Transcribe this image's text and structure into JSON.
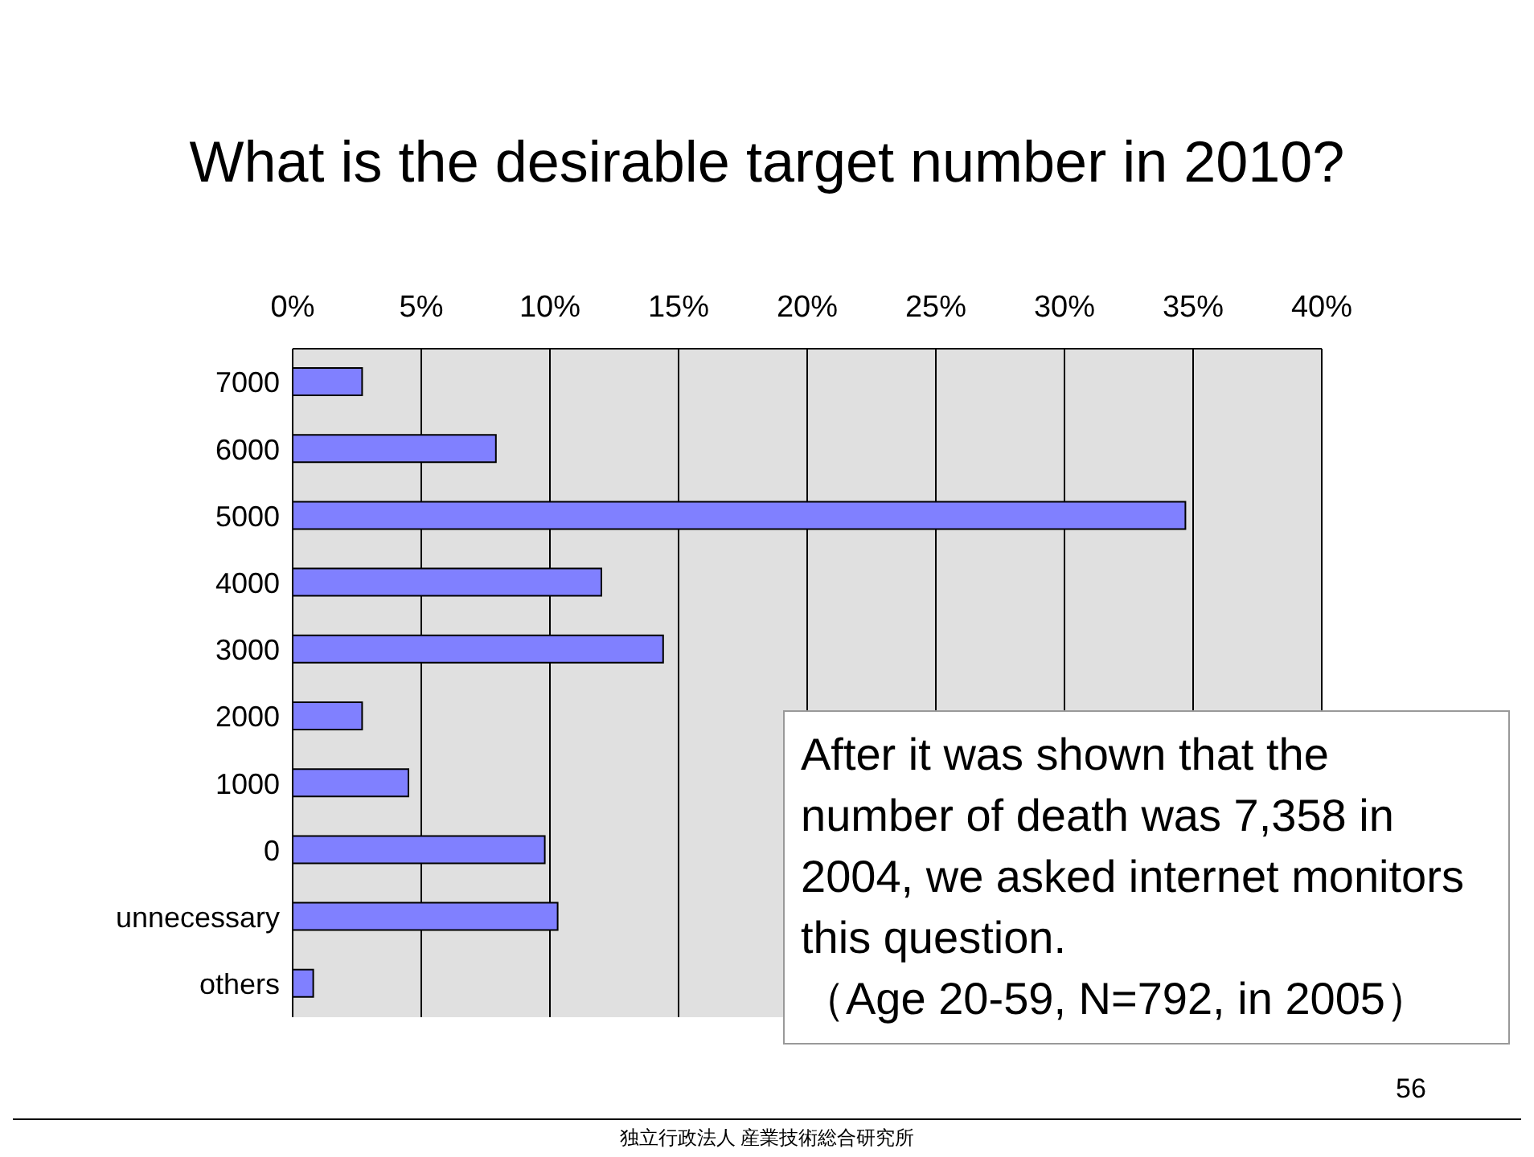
{
  "chart_data": {
    "type": "bar",
    "orientation": "horizontal",
    "title": "What is the desirable target number in 2010?",
    "categories": [
      "7000",
      "6000",
      "5000",
      "4000",
      "3000",
      "2000",
      "1000",
      "0",
      "unnecessary",
      "others"
    ],
    "values": [
      2.7,
      7.9,
      34.7,
      12.0,
      14.4,
      2.7,
      4.5,
      9.8,
      10.3,
      0.8
    ],
    "color": "#8080ff",
    "xlim": [
      0,
      40
    ],
    "xticks": [
      {
        "value": 0,
        "label": "0%"
      },
      {
        "value": 5,
        "label": "5%"
      },
      {
        "value": 10,
        "label": "10%"
      },
      {
        "value": 15,
        "label": "15%"
      },
      {
        "value": 20,
        "label": "20%"
      },
      {
        "value": 25,
        "label": "25%"
      },
      {
        "value": 30,
        "label": "30%"
      },
      {
        "value": 35,
        "label": "35%"
      },
      {
        "value": 40,
        "label": "40%"
      }
    ],
    "grid": "x",
    "annotations": [
      "After it was shown that the number of death was 7,358 in 2004, we asked internet monitors this question.",
      "（Age 20-59, N=792, in 2005）",
      "56",
      "独立行政法人 産業技術総合研究所"
    ]
  }
}
